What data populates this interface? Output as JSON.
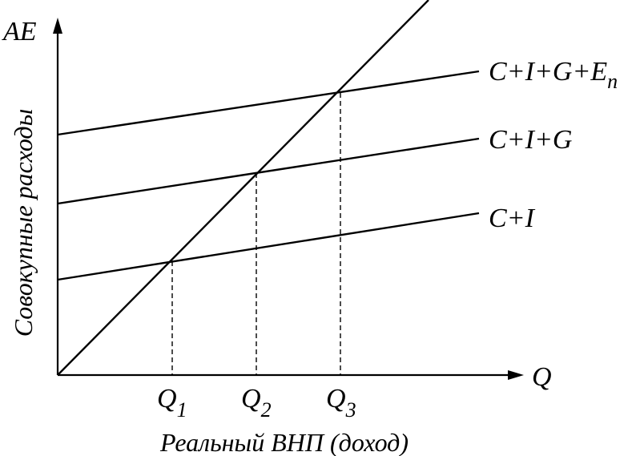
{
  "diagram": {
    "y_axis_label": "AE",
    "y_axis_title": "Совокупные расходы",
    "x_axis_label": "Q",
    "x_axis_title": "Реальный ВНП (доход)",
    "lines": [
      {
        "label": "C+I"
      },
      {
        "label": "C+I+G"
      },
      {
        "label": "C+I+G+E",
        "subscript": "n"
      }
    ],
    "equilibrium_points": [
      {
        "label": "Q",
        "subscript": "1"
      },
      {
        "label": "Q",
        "subscript": "2"
      },
      {
        "label": "Q",
        "subscript": "3"
      }
    ],
    "colors": {
      "line": "#000000",
      "background": "#ffffff"
    }
  }
}
